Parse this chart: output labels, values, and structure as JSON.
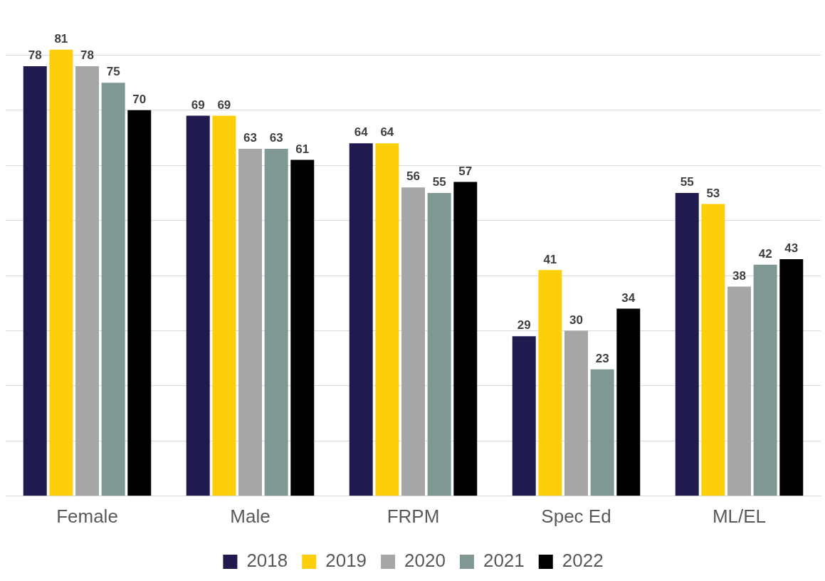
{
  "chart_data": {
    "type": "bar",
    "categories": [
      "Female",
      "Male",
      "FRPM",
      "Spec Ed",
      "ML/EL"
    ],
    "series": [
      {
        "name": "2018",
        "color": "#201a4f",
        "values": [
          78,
          69,
          64,
          29,
          55
        ]
      },
      {
        "name": "2019",
        "color": "#fccf0a",
        "values": [
          81,
          69,
          64,
          41,
          53
        ]
      },
      {
        "name": "2020",
        "color": "#a6a6a6",
        "values": [
          78,
          63,
          56,
          30,
          38
        ]
      },
      {
        "name": "2021",
        "color": "#7f9894",
        "values": [
          75,
          63,
          55,
          23,
          42
        ]
      },
      {
        "name": "2022",
        "color": "#000000",
        "values": [
          70,
          61,
          57,
          34,
          43
        ]
      }
    ],
    "yticks": [
      {
        "value": 0,
        "label": null
      },
      {
        "value": 10,
        "label": null
      },
      {
        "value": 20,
        "label": null
      },
      {
        "value": 30,
        "label": null
      },
      {
        "value": 40,
        "label": null
      },
      {
        "value": 50,
        "label": null
      },
      {
        "value": 60,
        "label": null
      },
      {
        "value": 70,
        "label": null
      },
      {
        "value": 80,
        "label": null
      }
    ],
    "grid": "y",
    "tick_labels": "x",
    "data_labels": true,
    "legend": "bottom"
  }
}
